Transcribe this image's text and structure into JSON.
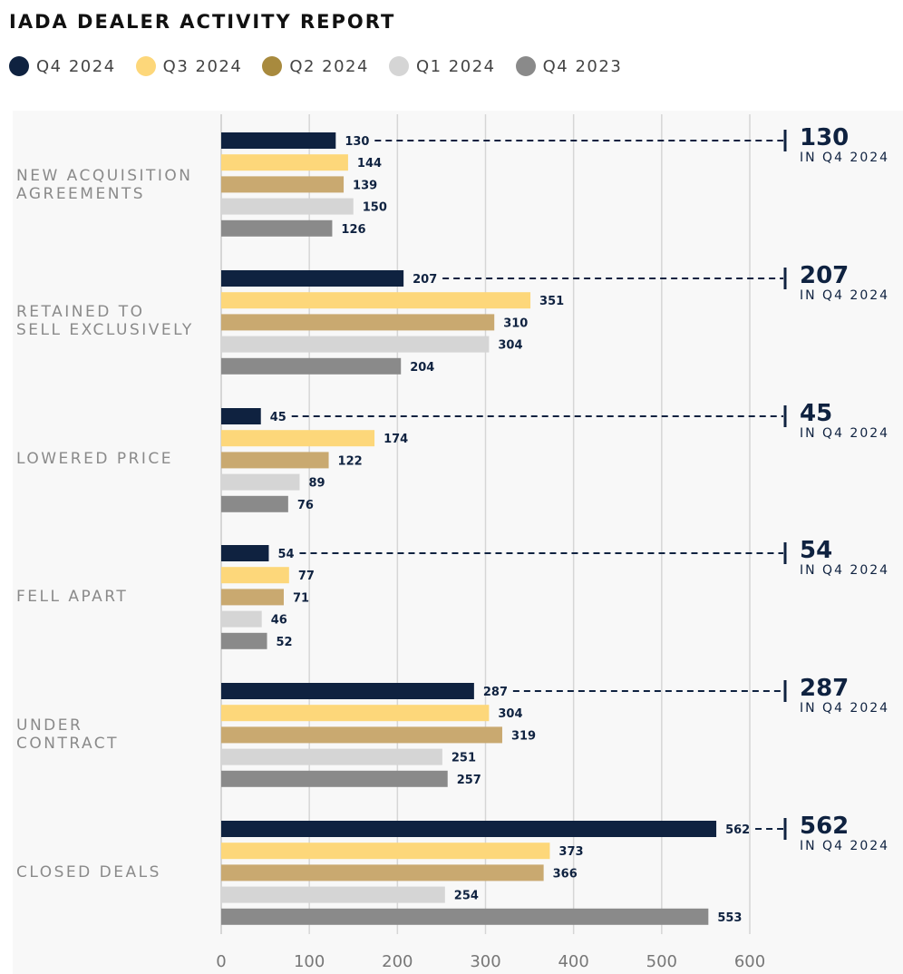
{
  "header": {
    "title": "IADA DEALER ACTIVITY REPORT"
  },
  "legend": [
    {
      "label": "Q4 2024",
      "color": "#0f2240"
    },
    {
      "label": "Q3 2024",
      "color": "#fdd77a"
    },
    {
      "label": "Q2 2024",
      "color": "#c9a970"
    },
    {
      "label": "Q1 2024",
      "color": "#d5d5d5"
    },
    {
      "label": "Q4 2023",
      "color": "#8a8a8a"
    }
  ],
  "chart_data": {
    "type": "bar",
    "orientation": "horizontal",
    "title": "IADA DEALER ACTIVITY REPORT",
    "categories": [
      "NEW ACQUISITION\nAGREEMENTS",
      "RETAINED TO\nSELL EXCLUSIVELY",
      "LOWERED PRICE",
      "FELL APART",
      "UNDER\nCONTRACT",
      "CLOSED DEALS"
    ],
    "series": [
      {
        "name": "Q4 2024",
        "color": "#0f2240",
        "values": [
          130,
          207,
          45,
          54,
          287,
          562
        ]
      },
      {
        "name": "Q3 2024",
        "color": "#fdd77a",
        "values": [
          144,
          351,
          174,
          77,
          304,
          373
        ]
      },
      {
        "name": "Q2 2024",
        "color": "#c9a970",
        "values": [
          139,
          310,
          122,
          71,
          319,
          366
        ]
      },
      {
        "name": "Q1 2024",
        "color": "#d5d5d5",
        "values": [
          150,
          304,
          89,
          46,
          251,
          254
        ]
      },
      {
        "name": "Q4 2023",
        "color": "#8a8a8a",
        "values": [
          126,
          204,
          76,
          52,
          257,
          553
        ]
      }
    ],
    "xlim": [
      0,
      600
    ],
    "xticks": [
      0,
      100,
      200,
      300,
      400,
      500,
      600
    ],
    "grid": true,
    "legend_position": "top-left",
    "callouts": [
      {
        "value": "130",
        "subtitle": "IN Q4 2024"
      },
      {
        "value": "207",
        "subtitle": "IN Q4 2024"
      },
      {
        "value": "45",
        "subtitle": "IN Q4 2024"
      },
      {
        "value": "54",
        "subtitle": "IN Q4 2024"
      },
      {
        "value": "287",
        "subtitle": "IN Q4 2024"
      },
      {
        "value": "562",
        "subtitle": "IN Q4 2024"
      }
    ]
  }
}
